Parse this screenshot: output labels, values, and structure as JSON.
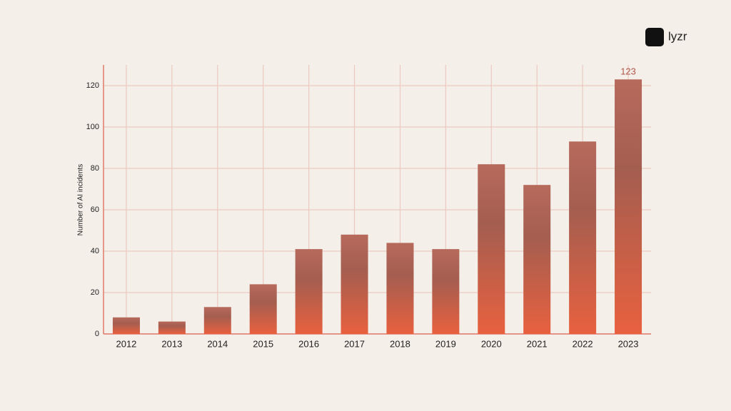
{
  "logo": {
    "text": "lyzr"
  },
  "chart_data": {
    "type": "bar",
    "y_label": "Number of AI incidents",
    "categories": [
      "2012",
      "2013",
      "2014",
      "2015",
      "2016",
      "2017",
      "2018",
      "2019",
      "2020",
      "2021",
      "2022",
      "2023"
    ],
    "values": [
      8,
      6,
      13,
      24,
      41,
      48,
      44,
      41,
      82,
      72,
      93,
      123
    ],
    "color": "#e8603f",
    "ylim": [
      0,
      130
    ],
    "yticks": [
      0,
      20,
      40,
      60,
      80,
      100,
      120
    ],
    "grid": true
  }
}
